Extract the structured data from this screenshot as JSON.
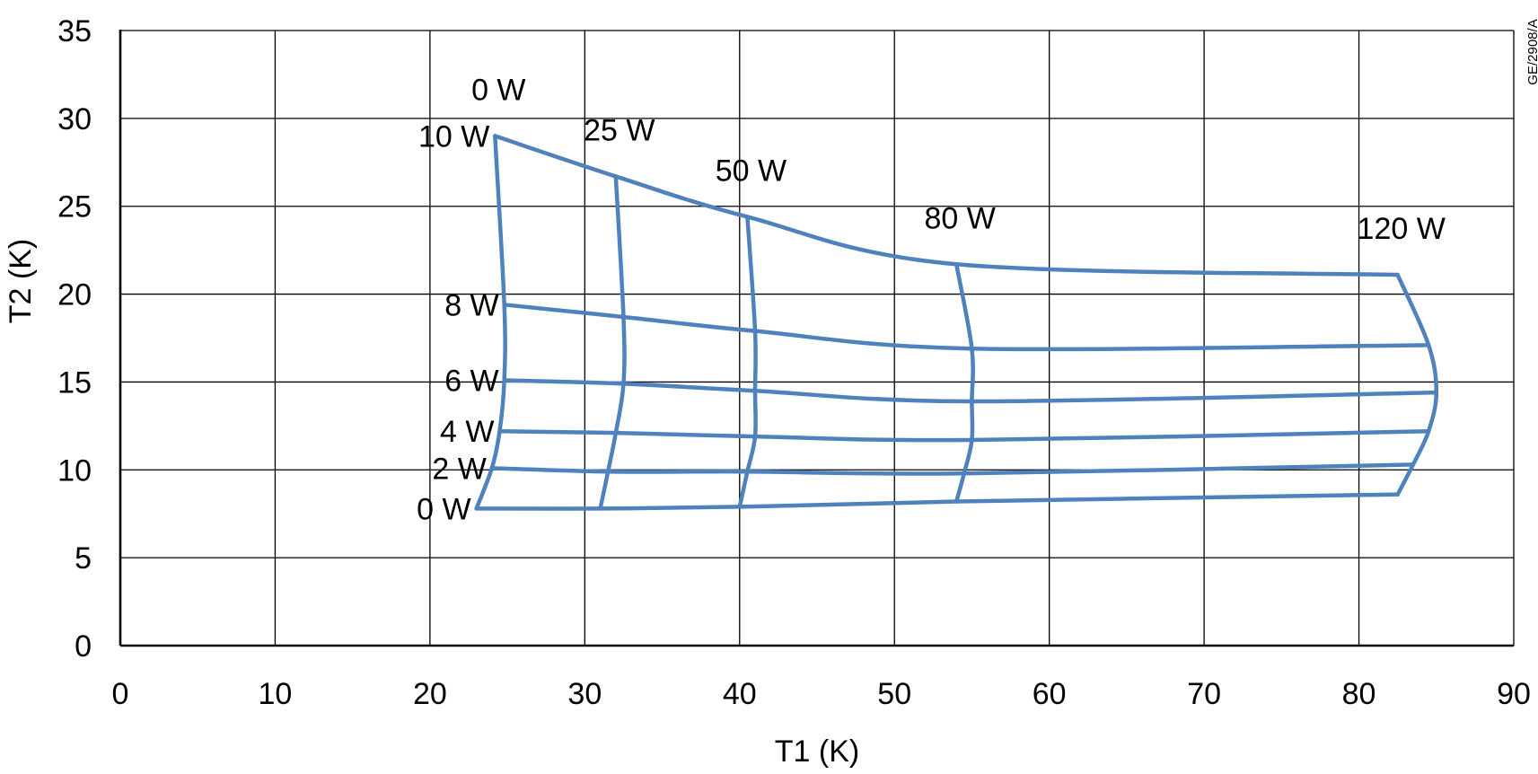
{
  "chart_data": {
    "type": "line",
    "xlabel": "T1 (K)",
    "ylabel": "T2 (K)",
    "xlim": [
      0,
      90
    ],
    "ylim": [
      0,
      35
    ],
    "xticks": [
      "0",
      "10",
      "20",
      "30",
      "40",
      "50",
      "60",
      "70",
      "80",
      "90"
    ],
    "yticks": [
      "0",
      "5",
      "10",
      "15",
      "20",
      "25",
      "30",
      "35"
    ],
    "grid": true,
    "line_color": "#4F81BD",
    "side_note": "GE/2908/A",
    "t2_load_curves": [
      {
        "label": "0 W",
        "points": [
          [
            23.0,
            7.8
          ],
          [
            31.0,
            7.8
          ],
          [
            40.0,
            7.9
          ],
          [
            54.0,
            8.2
          ],
          [
            82.5,
            8.6
          ]
        ]
      },
      {
        "label": "2 W",
        "points": [
          [
            24.0,
            10.1
          ],
          [
            31.5,
            9.9
          ],
          [
            40.5,
            9.9
          ],
          [
            54.5,
            9.8
          ],
          [
            83.5,
            10.3
          ]
        ]
      },
      {
        "label": "4 W",
        "points": [
          [
            24.5,
            12.2
          ],
          [
            32.0,
            12.1
          ],
          [
            41.0,
            11.9
          ],
          [
            55.0,
            11.7
          ],
          [
            84.5,
            12.2
          ]
        ]
      },
      {
        "label": "6 W",
        "points": [
          [
            24.8,
            15.1
          ],
          [
            32.5,
            14.9
          ],
          [
            41.0,
            14.5
          ],
          [
            55.0,
            13.9
          ],
          [
            85.0,
            14.4
          ]
        ]
      },
      {
        "label": "8 W",
        "points": [
          [
            24.8,
            19.4
          ],
          [
            32.5,
            18.7
          ],
          [
            41.0,
            17.9
          ],
          [
            55.0,
            16.9
          ],
          [
            84.5,
            17.1
          ]
        ]
      },
      {
        "label": "10 W",
        "points": [
          [
            24.2,
            29.0
          ],
          [
            32.0,
            26.7
          ],
          [
            40.5,
            24.4
          ],
          [
            54.0,
            21.7
          ],
          [
            82.5,
            21.1
          ]
        ]
      }
    ],
    "t1_load_curves": [
      {
        "label": "0 W",
        "points": [
          [
            23.0,
            7.8
          ],
          [
            24.0,
            10.1
          ],
          [
            24.5,
            12.2
          ],
          [
            24.8,
            15.1
          ],
          [
            24.8,
            19.4
          ],
          [
            24.2,
            29.0
          ]
        ]
      },
      {
        "label": "25 W",
        "points": [
          [
            31.0,
            7.8
          ],
          [
            31.5,
            9.9
          ],
          [
            32.0,
            12.1
          ],
          [
            32.5,
            14.9
          ],
          [
            32.5,
            18.7
          ],
          [
            32.0,
            26.7
          ]
        ]
      },
      {
        "label": "50 W",
        "points": [
          [
            40.0,
            7.9
          ],
          [
            40.5,
            9.9
          ],
          [
            41.0,
            11.9
          ],
          [
            41.0,
            14.5
          ],
          [
            41.0,
            17.9
          ],
          [
            40.5,
            24.4
          ]
        ]
      },
      {
        "label": "80 W",
        "points": [
          [
            54.0,
            8.2
          ],
          [
            54.5,
            9.8
          ],
          [
            55.0,
            11.7
          ],
          [
            55.0,
            13.9
          ],
          [
            55.0,
            16.9
          ],
          [
            54.0,
            21.7
          ]
        ]
      },
      {
        "label": "120 W",
        "points": [
          [
            82.5,
            8.6
          ],
          [
            83.5,
            10.3
          ],
          [
            84.5,
            12.2
          ],
          [
            85.0,
            14.4
          ],
          [
            84.5,
            17.1
          ],
          [
            82.5,
            21.1
          ]
        ]
      }
    ]
  }
}
